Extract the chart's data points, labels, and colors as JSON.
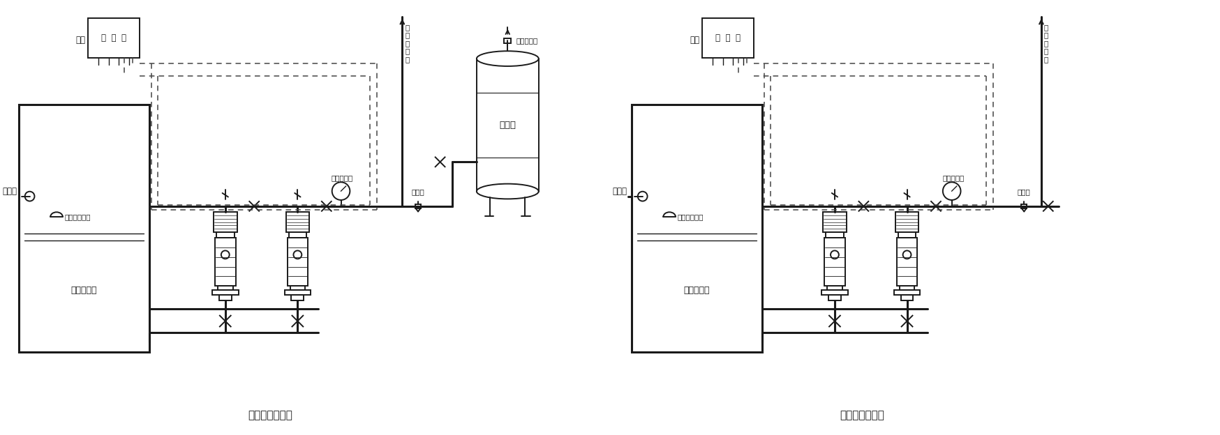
{
  "line_color": "#1a1a1a",
  "dashed_color": "#444444",
  "title1": "有缓冲器示意图",
  "title2": "无缓冲器示意图",
  "label_变频柜": "变  频  柜",
  "label_电源": "电源",
  "label_自来水": "自来水",
  "label_低水位保护器": "低水位保护器",
  "label_远传压力表": "远传压力表",
  "label_安全阀": "安全阀",
  "label_自动排气阀": "自动排气阀",
  "label_缓冲器": "缓冲器",
  "label_水池或水箱": "水池或水箱",
  "label_管道出水管": "管\n道\n出\n水\n管",
  "font_size_label": 8.5,
  "font_size_title": 11,
  "font_size_small": 7.5
}
